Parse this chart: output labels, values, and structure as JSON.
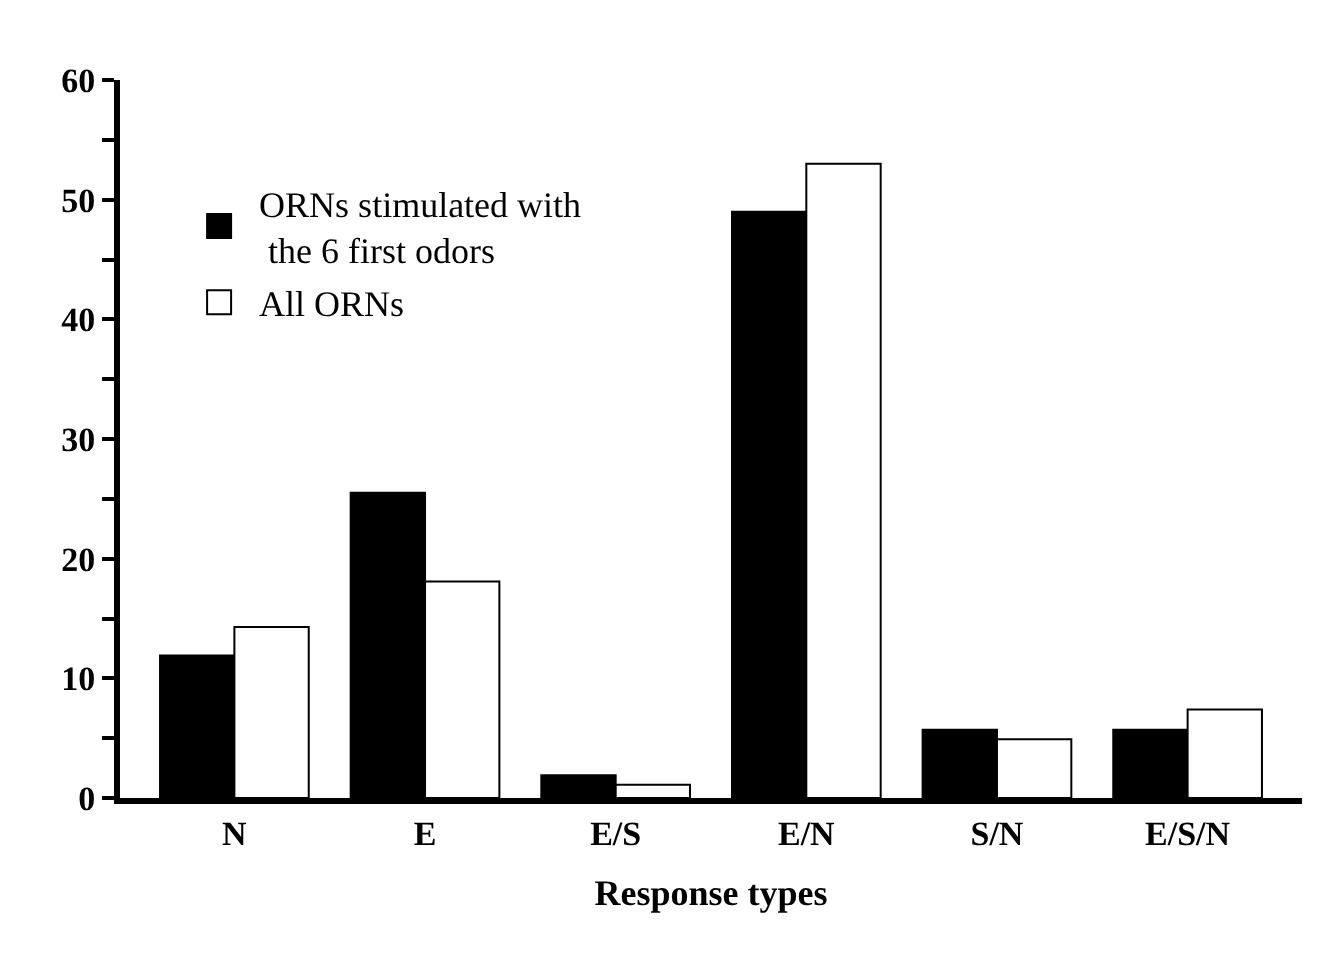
{
  "chart_data": {
    "type": "bar",
    "xlabel": "Response types",
    "categories": [
      "N",
      "E",
      "E/S",
      "E/N",
      "S/N",
      "E/S/N"
    ],
    "series": [
      {
        "name": "ORNs stimulated with\n the 6 first odors",
        "color": "#000000",
        "values": [
          11.9,
          25.5,
          1.9,
          49.0,
          5.7,
          5.7
        ]
      },
      {
        "name": "All ORNs",
        "color": "#ffffff",
        "values": [
          14.3,
          18.1,
          1.1,
          53.0,
          4.9,
          7.4
        ]
      }
    ],
    "ylim": [
      0,
      60
    ],
    "yticks": [
      0,
      {
        "value": 5,
        "label": null
      },
      10,
      {
        "value": 15,
        "label": null
      },
      20,
      {
        "value": 25,
        "label": null
      },
      30,
      {
        "value": 35,
        "label": null
      },
      40,
      {
        "value": 45,
        "label": null
      },
      50,
      {
        "value": 55,
        "label": null
      },
      60
    ],
    "legend": "top left"
  }
}
